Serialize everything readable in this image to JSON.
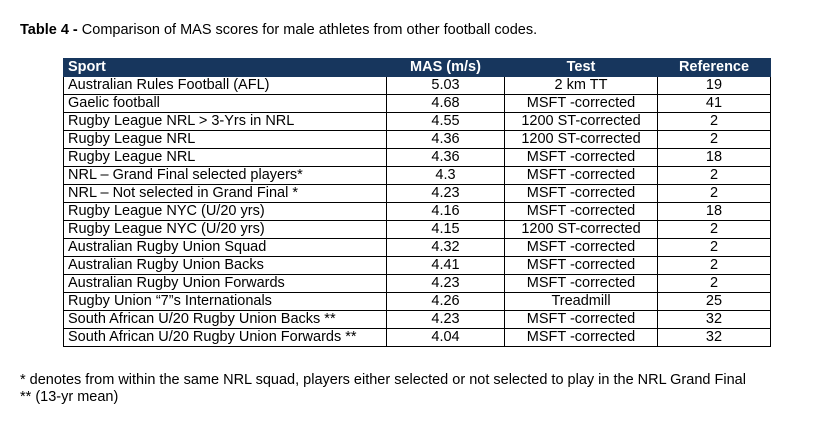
{
  "caption": {
    "label": "Table 4 -",
    "text": " Comparison of MAS scores for male athletes from other football codes."
  },
  "table": {
    "header": {
      "sport": "Sport",
      "mas": "MAS (m/s)",
      "test": "Test",
      "reference": "Reference"
    },
    "rows": [
      {
        "sport": "Australian Rules Football (AFL)",
        "mas": "5.03",
        "test": "2 km TT",
        "reference": "19"
      },
      {
        "sport": "Gaelic football",
        "mas": "4.68",
        "test": "MSFT -corrected",
        "reference": "41"
      },
      {
        "sport": "Rugby League NRL  > 3-Yrs in NRL",
        "mas": "4.55",
        "test": "1200 ST-corrected",
        "reference": "2"
      },
      {
        "sport": "Rugby League NRL",
        "mas": "4.36",
        "test": "1200 ST-corrected",
        "reference": "2"
      },
      {
        "sport": "Rugby League NRL",
        "mas": "4.36",
        "test": "MSFT -corrected",
        "reference": "18"
      },
      {
        "sport": "NRL – Grand Final selected players*",
        "mas": "4.3",
        "test": "MSFT -corrected",
        "reference": "2"
      },
      {
        "sport": "NRL – Not selected in Grand Final *",
        "mas": "4.23",
        "test": "MSFT -corrected",
        "reference": "2"
      },
      {
        "sport": "Rugby League NYC (U/20 yrs)",
        "mas": "4.16",
        "test": "MSFT -corrected",
        "reference": "18"
      },
      {
        "sport": "Rugby League NYC (U/20 yrs)",
        "mas": "4.15",
        "test": "1200 ST-corrected",
        "reference": "2"
      },
      {
        "sport": "Australian Rugby Union Squad",
        "mas": "4.32",
        "test": "MSFT -corrected",
        "reference": "2"
      },
      {
        "sport": "Australian Rugby Union Backs",
        "mas": "4.41",
        "test": "MSFT -corrected",
        "reference": "2"
      },
      {
        "sport": "Australian Rugby Union Forwards",
        "mas": "4.23",
        "test": "MSFT -corrected",
        "reference": "2"
      },
      {
        "sport": "Rugby Union “7”s Internationals",
        "mas": "4.26",
        "test": "Treadmill",
        "reference": "25"
      },
      {
        "sport": "South African U/20 Rugby Union Backs **",
        "mas": "4.23",
        "test": "MSFT -corrected",
        "reference": "32"
      },
      {
        "sport": "South African U/20 Rugby Union Forwards **",
        "mas": "4.04",
        "test": "MSFT -corrected",
        "reference": "32"
      }
    ]
  },
  "notes": {
    "note1": "* denotes from within the same NRL squad, players either selected or not selected to play in the NRL Grand Final",
    "note2": "** (13-yr mean)"
  }
}
